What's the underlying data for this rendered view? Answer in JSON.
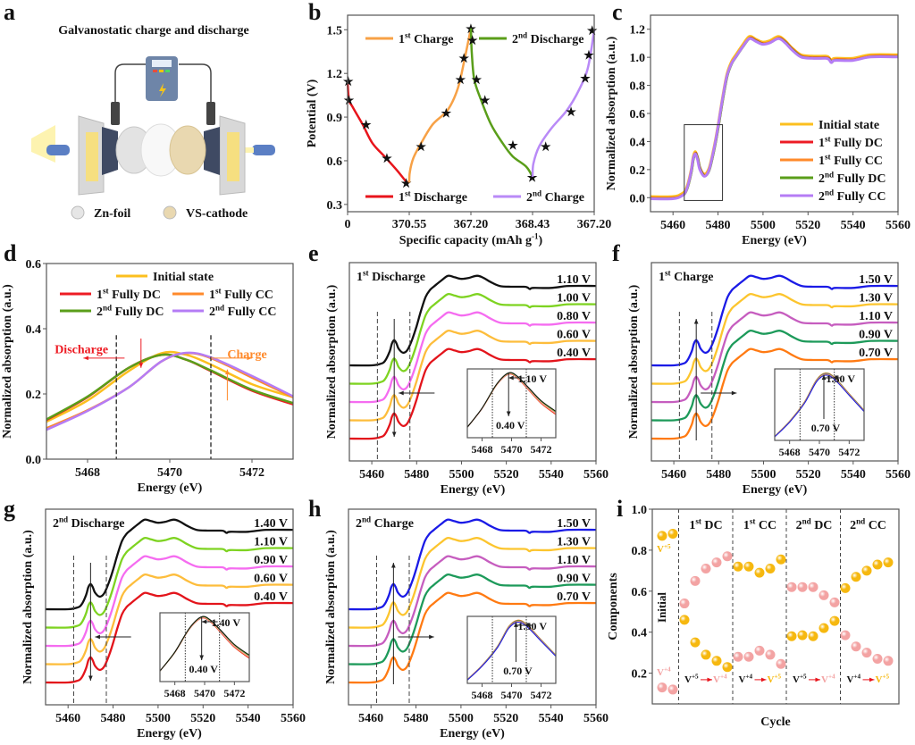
{
  "panel_labels": [
    "a",
    "b",
    "c",
    "d",
    "e",
    "f",
    "g",
    "h",
    "i"
  ],
  "schematic": {
    "title": "Galvanostatic charge and discharge",
    "legend": [
      {
        "label": "Zn-foil",
        "color": "#e6e6e6"
      },
      {
        "label": "VS-cathode",
        "color": "#e9d8b0"
      }
    ]
  },
  "chart_data": [
    {
      "panel": "b",
      "type": "line",
      "ylabel": "Potential (V)",
      "xlabel": {
        "pre": "Specific capacity (mAh g",
        "sup": "-1",
        "post": ")"
      },
      "ylim": [
        0.25,
        1.6
      ],
      "yticks": [
        "0.3",
        "0.6",
        "0.9",
        "1.2",
        "1.5"
      ],
      "xticks": [
        "0",
        "370.55",
        "367.20",
        "368.43",
        "367.20"
      ],
      "series": [
        {
          "name": {
            "pre": "1",
            "sup": "st",
            "post": " Discharge"
          },
          "color": "#e8141b",
          "capacity": [
            0,
            8,
            30,
            90,
            150,
            230,
            300,
            350,
            370.55
          ],
          "potential": [
            1.15,
            1.02,
            0.97,
            0.85,
            0.72,
            0.62,
            0.53,
            0.46,
            0.45
          ],
          "stars": [
            [
              4,
              1.15
            ],
            [
              8,
              1.02
            ],
            [
              111,
              0.85
            ],
            [
              236,
              0.62
            ],
            [
              352,
              0.45
            ]
          ]
        },
        {
          "name": {
            "pre": "1",
            "sup": "st",
            "post": " Charge"
          },
          "color": "#f7a146",
          "capacity": [
            0,
            3,
            25,
            70,
            140,
            230,
            290,
            330,
            367.2
          ],
          "potential": [
            0.45,
            0.52,
            0.62,
            0.72,
            0.85,
            0.95,
            1.1,
            1.3,
            1.51
          ],
          "stars": [
            [
              70,
              0.7
            ],
            [
              220,
              0.93
            ],
            [
              305,
              1.16
            ],
            [
              326,
              1.31
            ],
            [
              367,
              1.51
            ]
          ]
        },
        {
          "name": {
            "pre": "2",
            "sup": "nd",
            "post": " Discharge"
          },
          "color": "#5a9e1a",
          "capacity": [
            0,
            5,
            20,
            60,
            120,
            190,
            250,
            330,
            368.43
          ],
          "potential": [
            1.51,
            1.35,
            1.16,
            1.02,
            0.85,
            0.72,
            0.63,
            0.56,
            0.49
          ],
          "stars": [
            [
              9,
              1.43
            ],
            [
              34,
              1.16
            ],
            [
              84,
              1.02
            ],
            [
              251,
              0.71
            ],
            [
              366,
              0.49
            ]
          ]
        },
        {
          "name": {
            "pre": "2",
            "sup": "nd",
            "post": " Charge"
          },
          "color": "#b98af7",
          "capacity": [
            0,
            5,
            40,
            110,
            200,
            260,
            320,
            345,
            367.2
          ],
          "potential": [
            0.49,
            0.58,
            0.7,
            0.82,
            0.94,
            1.05,
            1.2,
            1.33,
            1.5
          ],
          "stars": [
            [
              78,
              0.7
            ],
            [
              229,
              0.94
            ],
            [
              314,
              1.17
            ],
            [
              335,
              1.33
            ],
            [
              355,
              1.5
            ]
          ]
        }
      ]
    },
    {
      "panel": "c",
      "type": "line",
      "xlabel": "Energy (eV)",
      "ylabel": "Normalized absorption (a.u.)",
      "xlim": [
        5450,
        5560
      ],
      "ylim": [
        -0.1,
        1.3
      ],
      "xticks": [
        "5460",
        "5480",
        "5500",
        "5520",
        "5540",
        "5560"
      ],
      "yticks": [
        "0.0",
        "0.2",
        "0.4",
        "0.6",
        "0.8",
        "1.0",
        "1.2"
      ],
      "legend_position": "bottom-right",
      "zoom_box": {
        "energy": [
          5465,
          5482
        ],
        "absorption": [
          -0.02,
          0.52
        ]
      },
      "spectrum": {
        "energy": [
          5450,
          5460,
          5464,
          5466,
          5468,
          5469,
          5470,
          5471,
          5472,
          5474,
          5476,
          5478,
          5480,
          5482,
          5484,
          5486,
          5488,
          5491,
          5494,
          5497,
          5500,
          5503,
          5507,
          5510,
          5513,
          5517,
          5522,
          5528,
          5529.5,
          5530.5,
          5532,
          5540,
          5548,
          5560
        ],
        "absorption": [
          0.0,
          0.0,
          0.02,
          0.06,
          0.18,
          0.28,
          0.32,
          0.28,
          0.21,
          0.16,
          0.2,
          0.33,
          0.5,
          0.7,
          0.87,
          0.96,
          1.01,
          1.08,
          1.14,
          1.12,
          1.1,
          1.11,
          1.14,
          1.11,
          1.06,
          1.01,
          1.0,
          1.0,
          0.99,
          0.97,
          0.985,
          0.985,
          1.01,
          1.01
        ]
      },
      "series": [
        {
          "name": {
            "pre": "Initial state"
          },
          "color": "#fcbf1e"
        },
        {
          "name": {
            "pre": "1",
            "sup": "st",
            "post": "  Fully DC"
          },
          "color": "#ed1c24"
        },
        {
          "name": {
            "pre": "1",
            "sup": "st",
            "post": "  Fully CC"
          },
          "color": "#ff8a2b"
        },
        {
          "name": {
            "pre": "2",
            "sup": "nd",
            "post": " Fully DC"
          },
          "color": "#5a9e1a"
        },
        {
          "name": {
            "pre": "2",
            "sup": "nd",
            "post": " Fully CC"
          },
          "color": "#b57cf5"
        }
      ]
    },
    {
      "panel": "d",
      "type": "line",
      "xlabel": "Energy (eV)",
      "ylabel": "Normalized absorption (a.u.)",
      "xlim": [
        5467,
        5473
      ],
      "ylim": [
        0,
        0.6
      ],
      "xticks": [
        "5468",
        "5470",
        "5472"
      ],
      "yticks": [
        "0.0",
        "0.2",
        "0.4",
        "0.6"
      ],
      "energy": [
        5467,
        5468,
        5469,
        5469.8,
        5470.4,
        5471,
        5472,
        5473
      ],
      "series": [
        {
          "name": {
            "pre": "Initial state"
          },
          "color": "#fcbf1e",
          "absorption": [
            0.115,
            0.18,
            0.27,
            0.325,
            0.32,
            0.29,
            0.23,
            0.19
          ]
        },
        {
          "name": {
            "pre": "1",
            "sup": "st",
            "post": "  Fully DC"
          },
          "color": "#ed1c24",
          "absorption": [
            0.12,
            0.19,
            0.28,
            0.32,
            0.305,
            0.27,
            0.21,
            0.168
          ]
        },
        {
          "name": {
            "pre": "1",
            "sup": "st",
            "post": "  Fully CC"
          },
          "color": "#ff8a2b",
          "absorption": [
            0.095,
            0.15,
            0.22,
            0.3,
            0.325,
            0.31,
            0.25,
            0.19
          ]
        },
        {
          "name": {
            "pre": "2",
            "sup": "nd",
            "post": " Fully DC"
          },
          "color": "#5a9e1a",
          "absorption": [
            0.122,
            0.192,
            0.28,
            0.32,
            0.305,
            0.272,
            0.213,
            0.172
          ]
        },
        {
          "name": {
            "pre": "2",
            "sup": "nd",
            "post": " Fully CC"
          },
          "color": "#b57cf5",
          "absorption": [
            0.09,
            0.148,
            0.22,
            0.3,
            0.326,
            0.312,
            0.255,
            0.193
          ]
        }
      ],
      "dashed_lines_eV": [
        5468.7,
        5471
      ],
      "annotations": {
        "discharge": "Discharge",
        "charge": "Charge",
        "discharge_color": "#ed1c24",
        "charge_color": "#ff8a2b"
      }
    },
    {
      "panel": "e",
      "type": "line",
      "direction": "discharge",
      "title": {
        "pre": "1",
        "sup": "st",
        "post": " Discharge"
      },
      "xlabel": "Energy (eV)",
      "ylabel": "Normalized absorption (a.u.)",
      "xlim": [
        5450,
        5560
      ],
      "xticks": [
        "5460",
        "5480",
        "5500",
        "5520",
        "5540",
        "5560"
      ],
      "series": [
        {
          "label": "1.10 V",
          "color": "#111111"
        },
        {
          "label": "1.00 V",
          "color": "#7ed321"
        },
        {
          "label": "0.80 V",
          "color": "#f56cf0"
        },
        {
          "label": "0.60 V",
          "color": "#fdbd3c"
        },
        {
          "label": "0.40 V",
          "color": "#e3141b"
        }
      ],
      "inset": {
        "xticks": [
          "5468",
          "5470",
          "5472"
        ],
        "top_label": "1.10 V",
        "bottom_label": "0.40 V"
      }
    },
    {
      "panel": "f",
      "type": "line",
      "direction": "charge",
      "title": {
        "pre": "1",
        "sup": "st",
        "post": " Charge"
      },
      "xlabel": "Energy (eV)",
      "ylabel": "Normalized absorption (a.u.)",
      "xlim": [
        5450,
        5560
      ],
      "xticks": [
        "5460",
        "5480",
        "5500",
        "5520",
        "5540",
        "5560"
      ],
      "series": [
        {
          "label": "1.50 V",
          "color": "#1a1ae6"
        },
        {
          "label": "1.30 V",
          "color": "#fcc52e"
        },
        {
          "label": "1.10 V",
          "color": "#c65dbf"
        },
        {
          "label": "0.90 V",
          "color": "#1d9a5a"
        },
        {
          "label": "0.70 V",
          "color": "#ff7a12"
        }
      ],
      "inset": {
        "xticks": [
          "5468",
          "5470",
          "5472"
        ],
        "top_label": "1.50 V",
        "bottom_label": "0.70 V"
      }
    },
    {
      "panel": "g",
      "type": "line",
      "direction": "discharge",
      "title": {
        "pre": "2",
        "sup": "nd",
        "post": " Discharge"
      },
      "xlabel": "Energy (eV)",
      "ylabel": "Normalized absorption (a.u.)",
      "xlim": [
        5450,
        5560
      ],
      "xticks": [
        "5460",
        "5480",
        "5500",
        "5520",
        "5540",
        "5560"
      ],
      "series": [
        {
          "label": "1.40 V",
          "color": "#111111"
        },
        {
          "label": "1.10 V",
          "color": "#7ed321"
        },
        {
          "label": "0.90 V",
          "color": "#f56cf0"
        },
        {
          "label": "0.60 V",
          "color": "#fdbd3c"
        },
        {
          "label": "0.40 V",
          "color": "#e3141b"
        }
      ],
      "inset": {
        "xticks": [
          "5468",
          "5470",
          "5472"
        ],
        "top_label": "1.40 V",
        "bottom_label": "0.40 V"
      }
    },
    {
      "panel": "h",
      "type": "line",
      "direction": "charge",
      "title": {
        "pre": "2",
        "sup": "nd",
        "post": " Charge"
      },
      "xlabel": "Energy (eV)",
      "ylabel": "Normalized absorption (a.u.)",
      "xlim": [
        5450,
        5560
      ],
      "xticks": [
        "5460",
        "5480",
        "5500",
        "5520",
        "5540",
        "5560"
      ],
      "series": [
        {
          "label": "1.50 V",
          "color": "#1a1ae6"
        },
        {
          "label": "1.30 V",
          "color": "#fcc52e"
        },
        {
          "label": "1.10 V",
          "color": "#c65dbf"
        },
        {
          "label": "0.90 V",
          "color": "#1d9a5a"
        },
        {
          "label": "0.70 V",
          "color": "#ff7a12"
        }
      ],
      "inset": {
        "xticks": [
          "5468",
          "5470",
          "5472"
        ],
        "top_label": "1.50 V",
        "bottom_label": "0.70 V"
      }
    },
    {
      "panel": "i",
      "type": "scatter",
      "xlabel": "Cycle",
      "ylabel": "Components",
      "ylim": [
        0.05,
        1.0
      ],
      "yticks": [
        "0.2",
        "0.4",
        "0.6",
        "0.8",
        "1.0"
      ],
      "initial_label": "Initial",
      "group_sizes": [
        2,
        5,
        5,
        5,
        5
      ],
      "group_labels": [
        {
          "pre": "1",
          "sup": "st",
          "post": " DC"
        },
        {
          "pre": "1",
          "sup": "st",
          "post": " CC"
        },
        {
          "pre": "2",
          "sup": "nd",
          "post": " DC"
        },
        {
          "pre": "2",
          "sup": "nd",
          "post": " CC"
        }
      ],
      "series": [
        {
          "name": {
            "pre": "V",
            "sup": "+5"
          },
          "color": "#f6b80f",
          "values": [
            0.87,
            0.88,
            0.46,
            0.35,
            0.29,
            0.26,
            0.23,
            0.72,
            0.72,
            0.69,
            0.71,
            0.755,
            0.38,
            0.385,
            0.38,
            0.42,
            0.455,
            0.615,
            0.67,
            0.7,
            0.73,
            0.74
          ]
        },
        {
          "name": {
            "pre": "V",
            "sup": "+4"
          },
          "color": "#f3a3a3",
          "values": [
            0.13,
            0.12,
            0.54,
            0.65,
            0.71,
            0.74,
            0.77,
            0.28,
            0.28,
            0.31,
            0.29,
            0.245,
            0.62,
            0.62,
            0.62,
            0.58,
            0.545,
            0.385,
            0.33,
            0.3,
            0.27,
            0.26
          ]
        }
      ],
      "transitions": [
        {
          "from": {
            "pre": "V",
            "sup": "+5"
          },
          "to": {
            "pre": "V",
            "sup": "+4"
          },
          "to_color": "#f3a3a3"
        },
        {
          "from": {
            "pre": "V",
            "sup": "+4"
          },
          "to": {
            "pre": "V",
            "sup": "+5"
          },
          "to_color": "#f6b80f"
        },
        {
          "from": {
            "pre": "V",
            "sup": "+5"
          },
          "to": {
            "pre": "V",
            "sup": "+4"
          },
          "to_color": "#f3a3a3"
        },
        {
          "from": {
            "pre": "V",
            "sup": "+4"
          },
          "to": {
            "pre": "V",
            "sup": "+5"
          },
          "to_color": "#f6b80f"
        }
      ]
    }
  ]
}
